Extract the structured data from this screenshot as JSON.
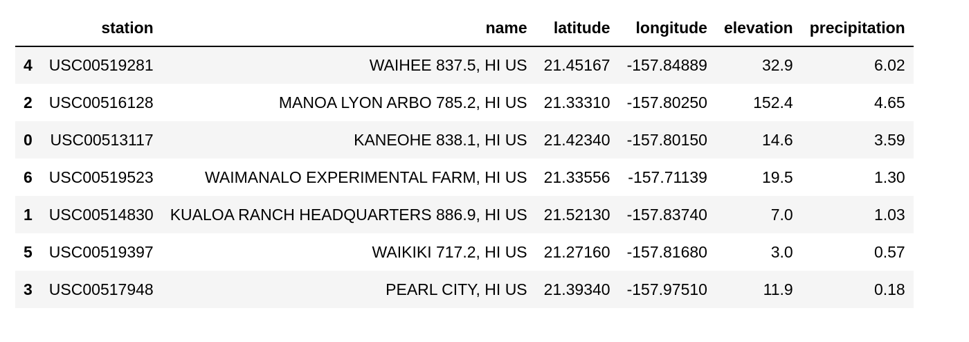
{
  "table": {
    "columns": [
      "",
      "station",
      "name",
      "latitude",
      "longitude",
      "elevation",
      "precipitation"
    ],
    "rows": [
      {
        "index": "4",
        "station": "USC00519281",
        "name": "WAIHEE 837.5, HI US",
        "latitude": "21.45167",
        "longitude": "-157.84889",
        "elevation": "32.9",
        "precipitation": "6.02"
      },
      {
        "index": "2",
        "station": "USC00516128",
        "name": "MANOA LYON ARBO 785.2, HI US",
        "latitude": "21.33310",
        "longitude": "-157.80250",
        "elevation": "152.4",
        "precipitation": "4.65"
      },
      {
        "index": "0",
        "station": "USC00513117",
        "name": "KANEOHE 838.1, HI US",
        "latitude": "21.42340",
        "longitude": "-157.80150",
        "elevation": "14.6",
        "precipitation": "3.59"
      },
      {
        "index": "6",
        "station": "USC00519523",
        "name": "WAIMANALO EXPERIMENTAL FARM, HI US",
        "latitude": "21.33556",
        "longitude": "-157.71139",
        "elevation": "19.5",
        "precipitation": "1.30"
      },
      {
        "index": "1",
        "station": "USC00514830",
        "name": "KUALOA RANCH HEADQUARTERS 886.9, HI US",
        "latitude": "21.52130",
        "longitude": "-157.83740",
        "elevation": "7.0",
        "precipitation": "1.03"
      },
      {
        "index": "5",
        "station": "USC00519397",
        "name": "WAIKIKI 717.2, HI US",
        "latitude": "21.27160",
        "longitude": "-157.81680",
        "elevation": "3.0",
        "precipitation": "0.57"
      },
      {
        "index": "3",
        "station": "USC00517948",
        "name": "PEARL CITY, HI US",
        "latitude": "21.39340",
        "longitude": "-157.97510",
        "elevation": "11.9",
        "precipitation": "0.18"
      }
    ]
  },
  "colors": {
    "stripe": "#f5f5f5",
    "header_rule": "#000000",
    "text": "#000000"
  }
}
